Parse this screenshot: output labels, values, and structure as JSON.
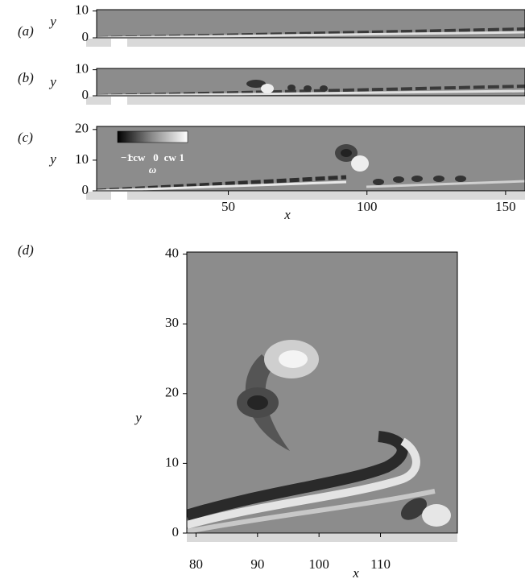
{
  "chart_data": [
    {
      "type": "contour",
      "panel_label": "(a)",
      "ylabel": "y",
      "xlim": [
        2.5,
        157
      ],
      "ylim": [
        0,
        10.5
      ],
      "yticks": [
        0,
        10
      ]
    },
    {
      "type": "contour",
      "panel_label": "(b)",
      "ylabel": "y",
      "xlim": [
        2.5,
        157
      ],
      "ylim": [
        0,
        10.5
      ],
      "yticks": [
        0,
        10
      ]
    },
    {
      "type": "contour",
      "panel_label": "(c)",
      "ylabel": "y",
      "xlabel": "x",
      "xlim": [
        2.5,
        157
      ],
      "ylim": [
        0,
        21
      ],
      "yticks": [
        0,
        10,
        20
      ],
      "xticks": [
        50,
        100,
        150
      ],
      "colorbar": {
        "clim": [
          -1,
          1
        ],
        "ticks": [
          {
            "value": -1,
            "label": "−1"
          },
          0,
          1
        ],
        "side_labels": [
          "ccw",
          "cw"
        ],
        "label": "ω"
      }
    },
    {
      "type": "contour",
      "panel_label": "(d)",
      "ylabel": "y",
      "xlabel": "x",
      "xlim": [
        78.5,
        122.5
      ],
      "ylim": [
        0,
        40.3
      ],
      "yticks": [
        0,
        10,
        20,
        30,
        40
      ],
      "xticks": [
        80,
        90,
        100,
        110
      ]
    }
  ]
}
